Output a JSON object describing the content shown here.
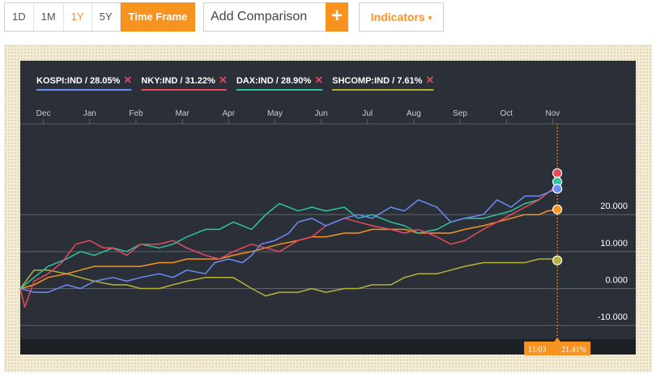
{
  "toolbar": {
    "periods": [
      "1D",
      "1M",
      "1Y",
      "5Y"
    ],
    "active_period": "1Y",
    "timeframe_label": "Time Frame",
    "comparison_placeholder": "Add Comparison",
    "add_label": "+",
    "indicators_label": "Indicators",
    "indicators_caret": "▾"
  },
  "colors": {
    "accent": "#f7931e",
    "panel_bg": "#2b3038",
    "frame_bg": "#f3ecd7"
  },
  "tooltip": {
    "date": "11/03",
    "value": "21.41%"
  },
  "chart_data": {
    "type": "line",
    "x_labels": [
      "Dec",
      "Jan",
      "Feb",
      "Mar",
      "Apr",
      "May",
      "Jun",
      "Jul",
      "Aug",
      "Sep",
      "Oct",
      "Nov"
    ],
    "x_tick_positions": [
      0.5,
      1.5,
      2.5,
      3.5,
      4.5,
      5.5,
      6.5,
      7.5,
      8.5,
      9.5,
      10.5,
      11.5
    ],
    "x_range": [
      0,
      12
    ],
    "ylim": [
      -15,
      45
    ],
    "y_ticks": [
      20,
      10,
      0,
      -10
    ],
    "y_tick_labels": [
      "20.000",
      "10.000",
      "0.000",
      "-10.000"
    ],
    "grid": true,
    "legend_position": "top-left",
    "series": [
      {
        "name": "KOSPI:IND",
        "change": "28.05%",
        "color": "#6b8cf5",
        "x": [
          0,
          0.3,
          0.6,
          1,
          1.3,
          1.6,
          2,
          2.3,
          2.6,
          3,
          3.3,
          3.6,
          4,
          4.2,
          4.5,
          4.8,
          5,
          5.2,
          5.5,
          5.8,
          6,
          6.3,
          6.6,
          7,
          7.3,
          7.6,
          8,
          8.3,
          8.6,
          9,
          9.3,
          9.6,
          10,
          10.3,
          10.6,
          10.9,
          11.2,
          11.4,
          11.6
        ],
        "y": [
          0,
          -1,
          -1,
          1,
          0,
          2,
          3,
          2,
          3,
          4,
          3,
          5,
          4,
          7,
          8,
          7,
          9,
          12,
          13,
          15,
          18,
          19,
          17,
          19,
          20,
          19,
          22,
          21,
          24,
          22,
          18,
          19,
          20,
          24,
          22,
          25,
          25,
          26,
          27
        ]
      },
      {
        "name": "NKY:IND",
        "change": "31.22%",
        "color": "#e8495e",
        "x": [
          0,
          0.1,
          0.3,
          0.6,
          0.9,
          1.2,
          1.5,
          1.8,
          2,
          2.3,
          2.6,
          3,
          3.3,
          3.6,
          4,
          4.3,
          4.6,
          5,
          5.3,
          5.6,
          6,
          6.3,
          6.6,
          7,
          7.3,
          7.6,
          8,
          8.3,
          8.6,
          9,
          9.3,
          9.6,
          10,
          10.3,
          10.6,
          10.9,
          11.2,
          11.4,
          11.6
        ],
        "y": [
          0,
          -5,
          2,
          4,
          7,
          12,
          13,
          11,
          11,
          9,
          12,
          12,
          13,
          11,
          9,
          8,
          10,
          12,
          11,
          10,
          13,
          14,
          17,
          19,
          18,
          17,
          16,
          15,
          16,
          14,
          12,
          13,
          16,
          18,
          20,
          22,
          24,
          26,
          28
        ]
      },
      {
        "name": "DAX:IND",
        "change": "28.90%",
        "color": "#2ec4a0",
        "x": [
          0,
          0.3,
          0.6,
          1,
          1.3,
          1.6,
          2,
          2.3,
          2.6,
          3,
          3.3,
          3.6,
          4,
          4.3,
          4.6,
          5,
          5.3,
          5.6,
          6,
          6.3,
          6.6,
          7,
          7.3,
          7.6,
          8,
          8.3,
          8.6,
          9,
          9.3,
          9.6,
          10,
          10.3,
          10.6,
          10.9,
          11.2,
          11.4,
          11.6
        ],
        "y": [
          0,
          3,
          6,
          8,
          10,
          9,
          11,
          10,
          12,
          11,
          12,
          14,
          16,
          16,
          18,
          16,
          20,
          23,
          21,
          22,
          21,
          22,
          19,
          20,
          18,
          17,
          15,
          16,
          18,
          19,
          19,
          20,
          21,
          23,
          24,
          26,
          28
        ]
      },
      {
        "name": "SHCOMP:IND",
        "change": "7.61%",
        "color": "#b5b13a",
        "x": [
          0,
          0.3,
          0.6,
          1,
          1.3,
          1.6,
          2,
          2.3,
          2.6,
          3,
          3.3,
          3.6,
          4,
          4.3,
          4.6,
          5,
          5.3,
          5.6,
          6,
          6.3,
          6.6,
          7,
          7.3,
          7.6,
          8,
          8.3,
          8.6,
          9,
          9.3,
          9.6,
          10,
          10.3,
          10.6,
          10.9,
          11.2,
          11.4,
          11.6
        ],
        "y": [
          0,
          5,
          5,
          4,
          3,
          2,
          1,
          1,
          0,
          0,
          1,
          2,
          3,
          3,
          3,
          0,
          -2,
          -1,
          -1,
          0,
          -1,
          0,
          0,
          1,
          1,
          3,
          4,
          4,
          5,
          6,
          7,
          7,
          7,
          7,
          8,
          8,
          8
        ]
      },
      {
        "name": "",
        "change": "",
        "color": "#f7931e",
        "x": [
          0,
          0.3,
          0.6,
          1,
          1.3,
          1.6,
          2,
          2.3,
          2.6,
          3,
          3.3,
          3.6,
          4,
          4.3,
          4.6,
          5,
          5.3,
          5.6,
          6,
          6.3,
          6.6,
          7,
          7.3,
          7.6,
          8,
          8.3,
          8.6,
          9,
          9.3,
          9.6,
          10,
          10.3,
          10.6,
          10.9,
          11.2,
          11.4,
          11.6
        ],
        "y": [
          0,
          1,
          3,
          4,
          5,
          6,
          6,
          6,
          6,
          7,
          7,
          8,
          8,
          8,
          9,
          10,
          11,
          12,
          13,
          14,
          14,
          15,
          15,
          16,
          16,
          16,
          15,
          15,
          15,
          16,
          17,
          18,
          19,
          20,
          20,
          21,
          21.41
        ]
      }
    ]
  }
}
